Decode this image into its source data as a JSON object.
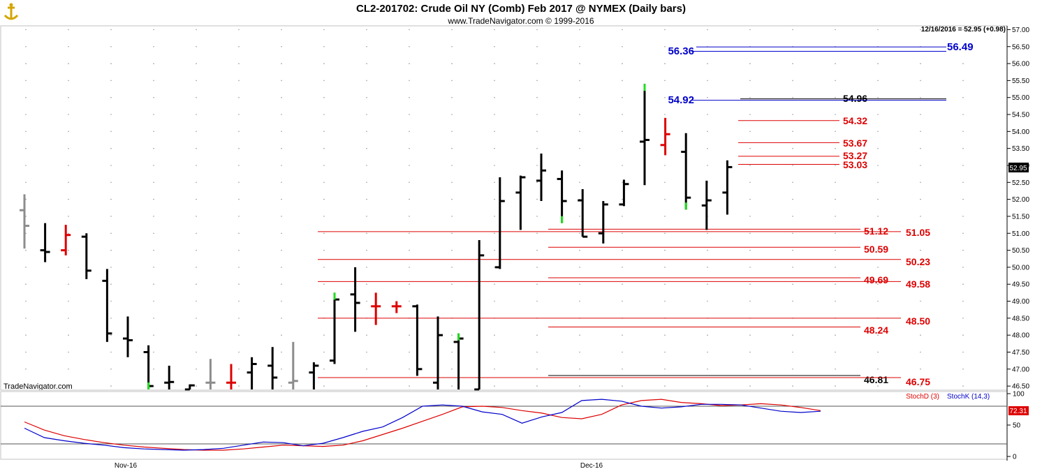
{
  "header": {
    "title": "CL2-201702:  Crude Oil NY (Comb) Feb 2017 @ NYMEX  (Daily bars)",
    "subtitle": "www.TradeNavigator.com © 1999-2016",
    "last_info": "12/16/2016 = 52.95 (+0.98)",
    "watermark": "TradeNavigator.com"
  },
  "logo_icon": "anchor-logo-icon",
  "colors": {
    "up_bar": "#000000",
    "down_bar": "#dd0000",
    "gray_bar": "#8c8c8c",
    "green_tick": "#22dd22",
    "red_level": "#dd0000",
    "blue_level": "#0000cc",
    "stoch_d": "#dd0000",
    "stoch_k": "#0000cc",
    "last_price_box": "#000000",
    "stoch_box": "#dd0000"
  },
  "chart_data": [
    {
      "type": "bar",
      "style": "ohlc",
      "title": "CL2-201702:  Crude Oil NY (Comb) Feb 2017 @ NYMEX  (Daily bars)",
      "ylim": [
        46.4,
        57.05
      ],
      "y_ticks": [
        "57.00",
        "56.50",
        "56.00",
        "55.50",
        "55.00",
        "54.50",
        "54.00",
        "53.50",
        "53.00",
        "52.50",
        "52.00",
        "51.50",
        "51.00",
        "50.50",
        "50.00",
        "49.50",
        "49.00",
        "48.50",
        "48.00",
        "47.50",
        "47.00",
        "46.50"
      ],
      "x_labels": [
        "Nov-16",
        "Dec-16"
      ],
      "last_price": "52.95",
      "bars": [
        {
          "o": 51.68,
          "h": 52.15,
          "l": 50.55,
          "c": 51.22,
          "color": "gray"
        },
        {
          "o": 50.5,
          "h": 51.3,
          "l": 50.15,
          "c": 50.45,
          "color": "black"
        },
        {
          "o": 50.5,
          "h": 51.25,
          "l": 50.35,
          "c": 50.95,
          "color": "red"
        },
        {
          "o": 50.9,
          "h": 51.0,
          "l": 49.65,
          "c": 49.9,
          "color": "black"
        },
        {
          "o": 49.6,
          "h": 49.95,
          "l": 47.8,
          "c": 48.05,
          "color": "black"
        },
        {
          "o": 47.9,
          "h": 48.55,
          "l": 47.35,
          "c": 47.85,
          "color": "black"
        },
        {
          "o": 47.5,
          "h": 47.7,
          "l": 46.4,
          "c": 46.5,
          "color": "black",
          "tick": "green"
        },
        {
          "o": 46.6,
          "h": 47.1,
          "l": 46.4,
          "c": 46.62,
          "color": "black"
        },
        {
          "o": 46.4,
          "h": 46.55,
          "l": 46.4,
          "c": 46.52,
          "color": "black"
        },
        {
          "o": 46.6,
          "h": 47.3,
          "l": 46.4,
          "c": 46.6,
          "color": "gray"
        },
        {
          "o": 46.6,
          "h": 47.15,
          "l": 46.4,
          "c": 46.6,
          "color": "red"
        },
        {
          "o": 46.9,
          "h": 47.35,
          "l": 46.4,
          "c": 47.15,
          "color": "black"
        },
        {
          "o": 47.1,
          "h": 47.65,
          "l": 46.4,
          "c": 46.75,
          "color": "black"
        },
        {
          "o": 46.6,
          "h": 47.8,
          "l": 46.4,
          "c": 46.65,
          "color": "gray"
        },
        {
          "o": 46.9,
          "h": 47.2,
          "l": 46.4,
          "c": 47.1,
          "color": "black"
        },
        {
          "o": 47.25,
          "h": 49.25,
          "l": 47.15,
          "c": 49.05,
          "color": "black",
          "tick": "green"
        },
        {
          "o": 49.2,
          "h": 50.0,
          "l": 48.1,
          "c": 48.95,
          "color": "black"
        },
        {
          "o": 48.85,
          "h": 49.25,
          "l": 48.3,
          "c": 48.85,
          "color": "red"
        },
        {
          "o": 48.85,
          "h": 49.0,
          "l": 48.65,
          "c": 48.85,
          "color": "red"
        },
        {
          "o": 48.85,
          "h": 48.9,
          "l": 46.8,
          "c": 47.0,
          "color": "black"
        },
        {
          "o": 46.6,
          "h": 48.55,
          "l": 46.4,
          "c": 48.0,
          "color": "black"
        },
        {
          "o": 47.8,
          "h": 48.05,
          "l": 46.4,
          "c": 47.9,
          "color": "black",
          "tick": "green"
        },
        {
          "o": 46.4,
          "h": 50.8,
          "l": 46.4,
          "c": 50.35,
          "color": "black"
        },
        {
          "o": 50.0,
          "h": 52.65,
          "l": 49.95,
          "c": 51.95,
          "color": "black"
        },
        {
          "o": 52.2,
          "h": 52.7,
          "l": 51.1,
          "c": 52.65,
          "color": "black"
        },
        {
          "o": 52.55,
          "h": 53.35,
          "l": 51.95,
          "c": 52.85,
          "color": "black"
        },
        {
          "o": 52.6,
          "h": 52.85,
          "l": 51.3,
          "c": 51.95,
          "color": "black",
          "tick": "green"
        },
        {
          "o": 51.97,
          "h": 52.3,
          "l": 50.9,
          "c": 50.9,
          "color": "black"
        },
        {
          "o": 51.0,
          "h": 51.95,
          "l": 50.7,
          "c": 51.85,
          "color": "black"
        },
        {
          "o": 51.85,
          "h": 52.58,
          "l": 51.8,
          "c": 52.45,
          "color": "black"
        },
        {
          "o": 53.7,
          "h": 55.4,
          "l": 52.42,
          "c": 53.75,
          "color": "black",
          "tick": "green"
        },
        {
          "o": 53.6,
          "h": 54.4,
          "l": 53.3,
          "c": 53.92,
          "color": "red"
        },
        {
          "o": 53.4,
          "h": 53.95,
          "l": 51.7,
          "c": 52.05,
          "color": "black",
          "tick": "green"
        },
        {
          "o": 51.82,
          "h": 52.55,
          "l": 51.1,
          "c": 51.97,
          "color": "black"
        },
        {
          "o": 52.2,
          "h": 53.15,
          "l": 51.55,
          "c": 52.95,
          "color": "black"
        }
      ],
      "levels": [
        {
          "value": 56.49,
          "label": "56.49",
          "color": "blue"
        },
        {
          "value": 56.36,
          "label": "56.36",
          "color": "blue"
        },
        {
          "value": 54.96,
          "label": "54.96",
          "color": "black"
        },
        {
          "value": 54.92,
          "label": "54.92",
          "color": "blue"
        },
        {
          "value": 54.32,
          "label": "54.32",
          "color": "red"
        },
        {
          "value": 53.67,
          "label": "53.67",
          "color": "red"
        },
        {
          "value": 53.27,
          "label": "53.27",
          "color": "red"
        },
        {
          "value": 53.03,
          "label": "53.03",
          "color": "red"
        },
        {
          "value": 51.12,
          "label": "51.12",
          "color": "red"
        },
        {
          "value": 51.05,
          "label": "51.05",
          "color": "red"
        },
        {
          "value": 50.59,
          "label": "50.59",
          "color": "red"
        },
        {
          "value": 50.23,
          "label": "50.23",
          "color": "red"
        },
        {
          "value": 49.69,
          "label": "49.69",
          "color": "red"
        },
        {
          "value": 49.58,
          "label": "49.58",
          "color": "red"
        },
        {
          "value": 48.5,
          "label": "48.50",
          "color": "red"
        },
        {
          "value": 48.24,
          "label": "48.24",
          "color": "red"
        },
        {
          "value": 46.81,
          "label": "46.81",
          "color": "black"
        },
        {
          "value": 46.75,
          "label": "46.75",
          "color": "red"
        }
      ]
    },
    {
      "type": "line",
      "ylim": [
        0,
        100
      ],
      "y_ticks": [
        "100",
        "50",
        "0"
      ],
      "ref_lines": [
        80,
        20
      ],
      "legend": [
        "StochD (3)",
        "StochK (14,3)"
      ],
      "last_value": "72.31",
      "series": [
        {
          "name": "StochD (3)",
          "color": "red",
          "values": [
            55,
            42,
            33,
            27,
            22,
            18,
            15,
            13,
            11,
            10,
            10,
            12,
            15,
            18,
            17,
            16,
            18,
            25,
            35,
            45,
            56,
            67,
            79,
            80,
            78,
            73,
            69,
            62,
            60,
            67,
            82,
            89,
            91,
            86,
            84,
            81,
            82,
            84,
            82,
            78,
            73
          ]
        },
        {
          "name": "StochK (14,3)",
          "color": "blue",
          "values": [
            45,
            30,
            25,
            21,
            18,
            14,
            12,
            11,
            10,
            11,
            13,
            18,
            23,
            22,
            17,
            21,
            30,
            40,
            47,
            62,
            80,
            82,
            80,
            71,
            67,
            53,
            63,
            70,
            89,
            91,
            88,
            80,
            77,
            79,
            83,
            83,
            82,
            77,
            72,
            70,
            72
          ]
        }
      ]
    }
  ]
}
